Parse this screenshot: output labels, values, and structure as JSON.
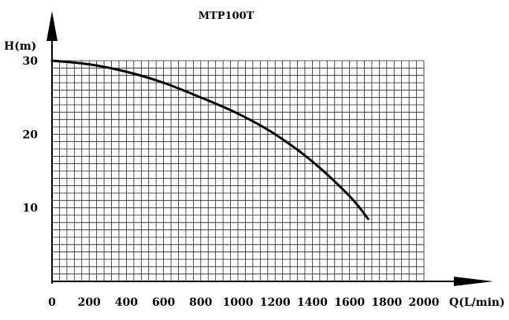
{
  "chart_data": {
    "type": "line",
    "title": "MTP100T",
    "xlabel": "Q(L/min)",
    "ylabel": "H(m)",
    "xlim": [
      0,
      2000
    ],
    "ylim": [
      0,
      30
    ],
    "x_ticks": [
      0,
      200,
      400,
      600,
      800,
      1000,
      1200,
      1400,
      1600,
      1800,
      2000
    ],
    "y_ticks": [
      10,
      20,
      30
    ],
    "grid": true,
    "series": [
      {
        "x": [
          0,
          200,
          400,
          600,
          800,
          1000,
          1200,
          1400,
          1600,
          1700
        ],
        "y": [
          30,
          29.5,
          28.5,
          27,
          25,
          22.8,
          20,
          16.3,
          11.6,
          8.5
        ]
      }
    ]
  }
}
